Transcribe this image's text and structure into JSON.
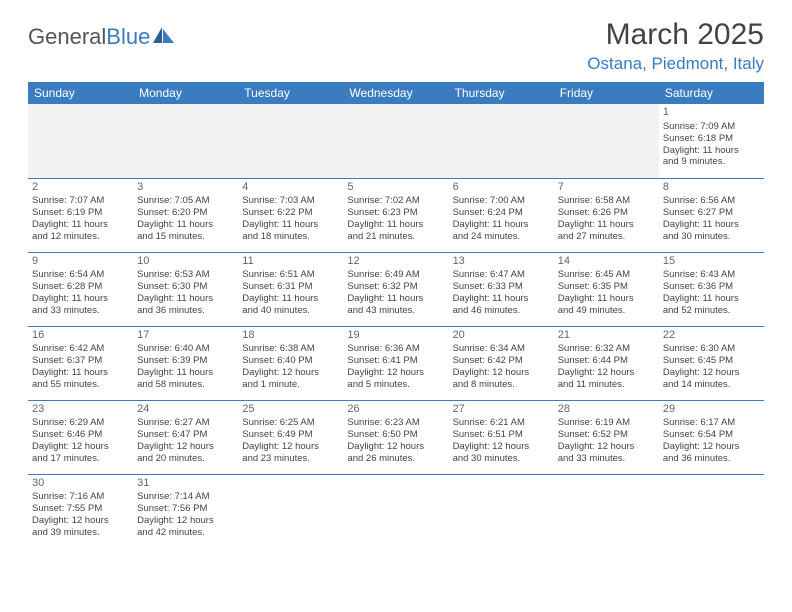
{
  "brand": {
    "part1": "General",
    "part2": "Blue"
  },
  "title": "March 2025",
  "location": "Ostana, Piedmont, Italy",
  "colors": {
    "header_bg": "#3b7bbf",
    "header_fg": "#ffffff",
    "border": "#3b7bbf",
    "empty_bg": "#f2f2f2",
    "text": "#444444"
  },
  "weekdays": [
    "Sunday",
    "Monday",
    "Tuesday",
    "Wednesday",
    "Thursday",
    "Friday",
    "Saturday"
  ],
  "weeks": [
    [
      null,
      null,
      null,
      null,
      null,
      null,
      {
        "n": "1",
        "sr": "Sunrise: 7:09 AM",
        "ss": "Sunset: 6:18 PM",
        "d1": "Daylight: 11 hours",
        "d2": "and 9 minutes."
      }
    ],
    [
      {
        "n": "2",
        "sr": "Sunrise: 7:07 AM",
        "ss": "Sunset: 6:19 PM",
        "d1": "Daylight: 11 hours",
        "d2": "and 12 minutes."
      },
      {
        "n": "3",
        "sr": "Sunrise: 7:05 AM",
        "ss": "Sunset: 6:20 PM",
        "d1": "Daylight: 11 hours",
        "d2": "and 15 minutes."
      },
      {
        "n": "4",
        "sr": "Sunrise: 7:03 AM",
        "ss": "Sunset: 6:22 PM",
        "d1": "Daylight: 11 hours",
        "d2": "and 18 minutes."
      },
      {
        "n": "5",
        "sr": "Sunrise: 7:02 AM",
        "ss": "Sunset: 6:23 PM",
        "d1": "Daylight: 11 hours",
        "d2": "and 21 minutes."
      },
      {
        "n": "6",
        "sr": "Sunrise: 7:00 AM",
        "ss": "Sunset: 6:24 PM",
        "d1": "Daylight: 11 hours",
        "d2": "and 24 minutes."
      },
      {
        "n": "7",
        "sr": "Sunrise: 6:58 AM",
        "ss": "Sunset: 6:26 PM",
        "d1": "Daylight: 11 hours",
        "d2": "and 27 minutes."
      },
      {
        "n": "8",
        "sr": "Sunrise: 6:56 AM",
        "ss": "Sunset: 6:27 PM",
        "d1": "Daylight: 11 hours",
        "d2": "and 30 minutes."
      }
    ],
    [
      {
        "n": "9",
        "sr": "Sunrise: 6:54 AM",
        "ss": "Sunset: 6:28 PM",
        "d1": "Daylight: 11 hours",
        "d2": "and 33 minutes."
      },
      {
        "n": "10",
        "sr": "Sunrise: 6:53 AM",
        "ss": "Sunset: 6:30 PM",
        "d1": "Daylight: 11 hours",
        "d2": "and 36 minutes."
      },
      {
        "n": "11",
        "sr": "Sunrise: 6:51 AM",
        "ss": "Sunset: 6:31 PM",
        "d1": "Daylight: 11 hours",
        "d2": "and 40 minutes."
      },
      {
        "n": "12",
        "sr": "Sunrise: 6:49 AM",
        "ss": "Sunset: 6:32 PM",
        "d1": "Daylight: 11 hours",
        "d2": "and 43 minutes."
      },
      {
        "n": "13",
        "sr": "Sunrise: 6:47 AM",
        "ss": "Sunset: 6:33 PM",
        "d1": "Daylight: 11 hours",
        "d2": "and 46 minutes."
      },
      {
        "n": "14",
        "sr": "Sunrise: 6:45 AM",
        "ss": "Sunset: 6:35 PM",
        "d1": "Daylight: 11 hours",
        "d2": "and 49 minutes."
      },
      {
        "n": "15",
        "sr": "Sunrise: 6:43 AM",
        "ss": "Sunset: 6:36 PM",
        "d1": "Daylight: 11 hours",
        "d2": "and 52 minutes."
      }
    ],
    [
      {
        "n": "16",
        "sr": "Sunrise: 6:42 AM",
        "ss": "Sunset: 6:37 PM",
        "d1": "Daylight: 11 hours",
        "d2": "and 55 minutes."
      },
      {
        "n": "17",
        "sr": "Sunrise: 6:40 AM",
        "ss": "Sunset: 6:39 PM",
        "d1": "Daylight: 11 hours",
        "d2": "and 58 minutes."
      },
      {
        "n": "18",
        "sr": "Sunrise: 6:38 AM",
        "ss": "Sunset: 6:40 PM",
        "d1": "Daylight: 12 hours",
        "d2": "and 1 minute."
      },
      {
        "n": "19",
        "sr": "Sunrise: 6:36 AM",
        "ss": "Sunset: 6:41 PM",
        "d1": "Daylight: 12 hours",
        "d2": "and 5 minutes."
      },
      {
        "n": "20",
        "sr": "Sunrise: 6:34 AM",
        "ss": "Sunset: 6:42 PM",
        "d1": "Daylight: 12 hours",
        "d2": "and 8 minutes."
      },
      {
        "n": "21",
        "sr": "Sunrise: 6:32 AM",
        "ss": "Sunset: 6:44 PM",
        "d1": "Daylight: 12 hours",
        "d2": "and 11 minutes."
      },
      {
        "n": "22",
        "sr": "Sunrise: 6:30 AM",
        "ss": "Sunset: 6:45 PM",
        "d1": "Daylight: 12 hours",
        "d2": "and 14 minutes."
      }
    ],
    [
      {
        "n": "23",
        "sr": "Sunrise: 6:29 AM",
        "ss": "Sunset: 6:46 PM",
        "d1": "Daylight: 12 hours",
        "d2": "and 17 minutes."
      },
      {
        "n": "24",
        "sr": "Sunrise: 6:27 AM",
        "ss": "Sunset: 6:47 PM",
        "d1": "Daylight: 12 hours",
        "d2": "and 20 minutes."
      },
      {
        "n": "25",
        "sr": "Sunrise: 6:25 AM",
        "ss": "Sunset: 6:49 PM",
        "d1": "Daylight: 12 hours",
        "d2": "and 23 minutes."
      },
      {
        "n": "26",
        "sr": "Sunrise: 6:23 AM",
        "ss": "Sunset: 6:50 PM",
        "d1": "Daylight: 12 hours",
        "d2": "and 26 minutes."
      },
      {
        "n": "27",
        "sr": "Sunrise: 6:21 AM",
        "ss": "Sunset: 6:51 PM",
        "d1": "Daylight: 12 hours",
        "d2": "and 30 minutes."
      },
      {
        "n": "28",
        "sr": "Sunrise: 6:19 AM",
        "ss": "Sunset: 6:52 PM",
        "d1": "Daylight: 12 hours",
        "d2": "and 33 minutes."
      },
      {
        "n": "29",
        "sr": "Sunrise: 6:17 AM",
        "ss": "Sunset: 6:54 PM",
        "d1": "Daylight: 12 hours",
        "d2": "and 36 minutes."
      }
    ],
    [
      {
        "n": "30",
        "sr": "Sunrise: 7:16 AM",
        "ss": "Sunset: 7:55 PM",
        "d1": "Daylight: 12 hours",
        "d2": "and 39 minutes."
      },
      {
        "n": "31",
        "sr": "Sunrise: 7:14 AM",
        "ss": "Sunset: 7:56 PM",
        "d1": "Daylight: 12 hours",
        "d2": "and 42 minutes."
      },
      null,
      null,
      null,
      null,
      null
    ]
  ]
}
